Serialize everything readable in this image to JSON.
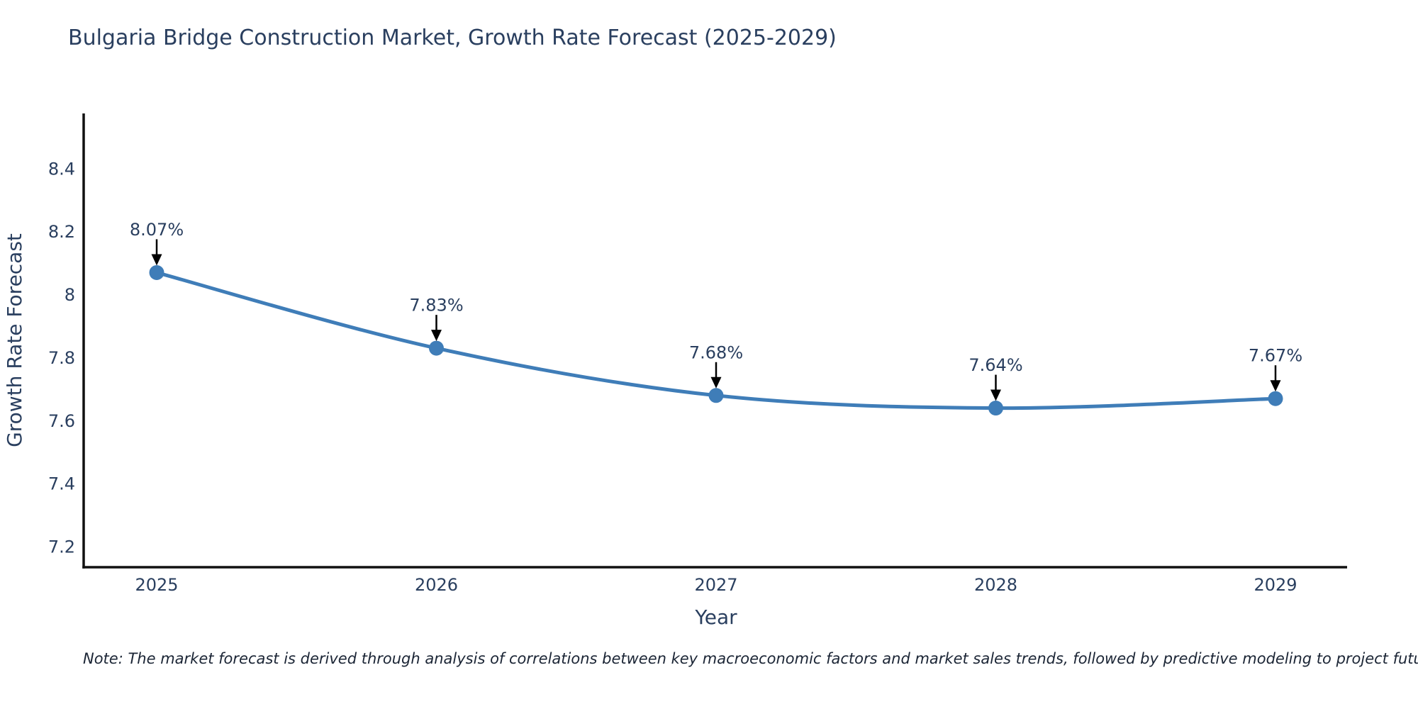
{
  "chart": {
    "title": "Bulgaria Bridge Construction Market, Growth Rate Forecast (2025-2029)",
    "note": "Note: The market forecast is derived through analysis of correlations between key macroeconomic factors and market sales trends, followed by predictive modeling to project future sales.",
    "colors": {
      "title_text": "#2a3f5f",
      "tick_text": "#2a3f5f",
      "axis_line": "#111111",
      "series_line": "#3f7db8",
      "marker_fill": "#3f7db8",
      "annotation_text": "#2a3f5f",
      "annotation_arrow": "#000000",
      "note_text": "#1b2535"
    }
  },
  "chart_data": {
    "type": "line",
    "title": "Bulgaria Bridge Construction Market, Growth Rate Forecast (2025-2029)",
    "x": [
      "2025",
      "2026",
      "2027",
      "2028",
      "2029"
    ],
    "values": [
      8.07,
      7.83,
      7.68,
      7.64,
      7.67
    ],
    "point_labels": [
      "8.07%",
      "7.83%",
      "7.68%",
      "7.64%",
      "7.67%"
    ],
    "xlabel": "Year",
    "ylabel": "Growth Rate Forecast",
    "yticks": [
      7.2,
      7.4,
      7.6,
      7.8,
      8,
      8.2,
      8.4
    ],
    "ytick_labels": [
      "7.2",
      "7.4",
      "7.6",
      "7.8",
      "8",
      "8.2",
      "8.4"
    ],
    "ylim": [
      7.135,
      8.575
    ],
    "line_shape": "spline",
    "grid": false,
    "legend": "none",
    "annotations": "each point labeled with value% and a black downward arrow"
  }
}
